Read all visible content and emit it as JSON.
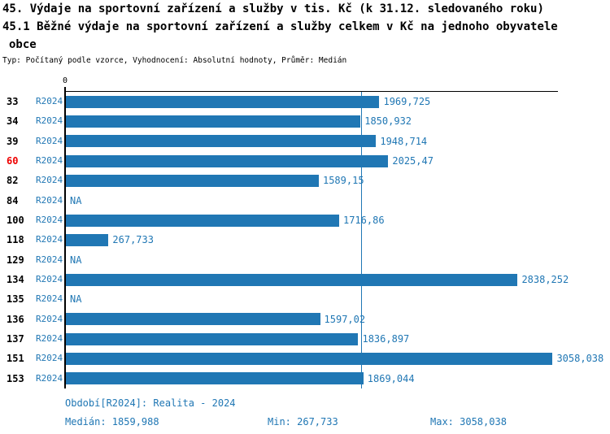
{
  "title_line1": "45. Výdaje na sportovní zařízení a služby v tis. Kč (k 31.12. sledovaného roku)",
  "title_line2": "45.1 Běžné výdaje na sportovní zařízení a služby celkem v Kč na jednoho obyvatele",
  "title_line3": "obce",
  "meta_line": "Typ: Počítaný podle vzorce, Vyhodnocení: Absolutní hodnoty, Průměr: Medián",
  "colors": {
    "bar_blue": "#2077b4",
    "text_blue": "#2077b4",
    "highlight_red": "#ee0000",
    "axis_black": "#000000"
  },
  "chart_data": {
    "type": "bar",
    "orientation": "horizontal",
    "series_label": "R2024",
    "axis_zero_label": "0",
    "median_value": 1859.988,
    "min_value": 267.733,
    "max_value": 3058.038,
    "highlighted_category": "60",
    "categories": [
      "33",
      "34",
      "39",
      "60",
      "82",
      "84",
      "100",
      "118",
      "129",
      "134",
      "135",
      "136",
      "137",
      "151",
      "153"
    ],
    "rows": [
      {
        "id": "33",
        "period": "R2024",
        "value": 1969.725,
        "value_label": "1969,725",
        "highlight": false
      },
      {
        "id": "34",
        "period": "R2024",
        "value": 1850.932,
        "value_label": "1850,932",
        "highlight": false
      },
      {
        "id": "39",
        "period": "R2024",
        "value": 1948.714,
        "value_label": "1948,714",
        "highlight": false
      },
      {
        "id": "60",
        "period": "R2024",
        "value": 2025.47,
        "value_label": "2025,47",
        "highlight": true
      },
      {
        "id": "82",
        "period": "R2024",
        "value": 1589.15,
        "value_label": "1589,15",
        "highlight": false
      },
      {
        "id": "84",
        "period": "R2024",
        "value": null,
        "value_label": "NA",
        "highlight": false
      },
      {
        "id": "100",
        "period": "R2024",
        "value": 1716.86,
        "value_label": "1716,86",
        "highlight": false
      },
      {
        "id": "118",
        "period": "R2024",
        "value": 267.733,
        "value_label": "267,733",
        "highlight": false
      },
      {
        "id": "129",
        "period": "R2024",
        "value": null,
        "value_label": "NA",
        "highlight": false
      },
      {
        "id": "134",
        "period": "R2024",
        "value": 2838.252,
        "value_label": "2838,252",
        "highlight": false
      },
      {
        "id": "135",
        "period": "R2024",
        "value": null,
        "value_label": "NA",
        "highlight": false
      },
      {
        "id": "136",
        "period": "R2024",
        "value": 1597.02,
        "value_label": "1597,02",
        "highlight": false
      },
      {
        "id": "137",
        "period": "R2024",
        "value": 1836.897,
        "value_label": "1836,897",
        "highlight": false
      },
      {
        "id": "151",
        "period": "R2024",
        "value": 3058.038,
        "value_label": "3058,038",
        "highlight": false
      },
      {
        "id": "153",
        "period": "R2024",
        "value": 1869.044,
        "value_label": "1869,044",
        "highlight": false
      }
    ]
  },
  "footer": {
    "period_line": "Období[R2024]: Realita - 2024",
    "median_label": "Medián: 1859,988",
    "min_label": "Min: 267,733",
    "max_label": "Max: 3058,038"
  }
}
